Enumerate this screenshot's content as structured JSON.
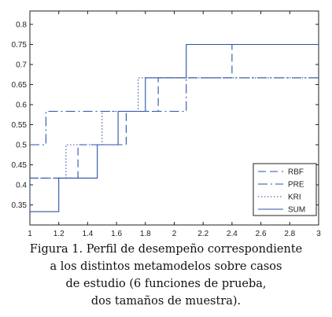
{
  "chart_data": {
    "type": "line",
    "step": true,
    "xlim": [
      1,
      3
    ],
    "ylim": [
      0.3,
      0.8333
    ],
    "xticks": [
      "1",
      "1.2",
      "1.4",
      "1.6",
      "1.8",
      "2",
      "2.2",
      "2.4",
      "2.6",
      "2.8",
      "3"
    ],
    "yticks": [
      "0.35",
      "0.4",
      "0.45",
      "0.5",
      "0.55",
      "0.6",
      "0.65",
      "0.7",
      "0.75",
      "0.8"
    ],
    "legend_position": "bottom-right",
    "grid": false,
    "series": [
      {
        "name": "RBF",
        "color": "#2b52a8",
        "dash": "10,5",
        "x": [
          1,
          1.333,
          1.333,
          1.667,
          1.667,
          1.889,
          1.889,
          2.4,
          2.4,
          3
        ],
        "y": [
          0.4167,
          0.4167,
          0.5,
          0.5,
          0.5833,
          0.5833,
          0.6667,
          0.6667,
          0.75,
          0.75
        ]
      },
      {
        "name": "PRE",
        "color": "#2b52a8",
        "dash": "12,4,2,4",
        "x": [
          1,
          1.111,
          1.111,
          2.083,
          2.083,
          3
        ],
        "y": [
          0.5,
          0.5,
          0.5833,
          0.5833,
          0.6667,
          0.6667
        ]
      },
      {
        "name": "KRI",
        "color": "#2b52a8",
        "dash": "1.5,2.5",
        "x": [
          1,
          1.0,
          1.0,
          1.25,
          1.25,
          1.5,
          1.5,
          1.75,
          1.75,
          3
        ],
        "y": [
          0.3333,
          0.3333,
          0.4167,
          0.4167,
          0.5,
          0.5,
          0.5833,
          0.5833,
          0.6667,
          0.6667
        ]
      },
      {
        "name": "SUM",
        "color": "#2b52a8",
        "dash": "",
        "x": [
          1,
          1.2,
          1.2,
          1.467,
          1.467,
          1.611,
          1.611,
          1.8,
          1.8,
          2.083,
          2.083,
          3
        ],
        "y": [
          0.3333,
          0.3333,
          0.4167,
          0.4167,
          0.5,
          0.5,
          0.5833,
          0.5833,
          0.6667,
          0.6667,
          0.75,
          0.75
        ]
      }
    ]
  },
  "caption": {
    "line1": "Figura 1. Perfil de desempeño correspondiente",
    "line2": "a los distintos metamodelos sobre casos",
    "line3": "de estudio (6 funciones de prueba,",
    "line4": "dos tamaños de muestra)."
  }
}
